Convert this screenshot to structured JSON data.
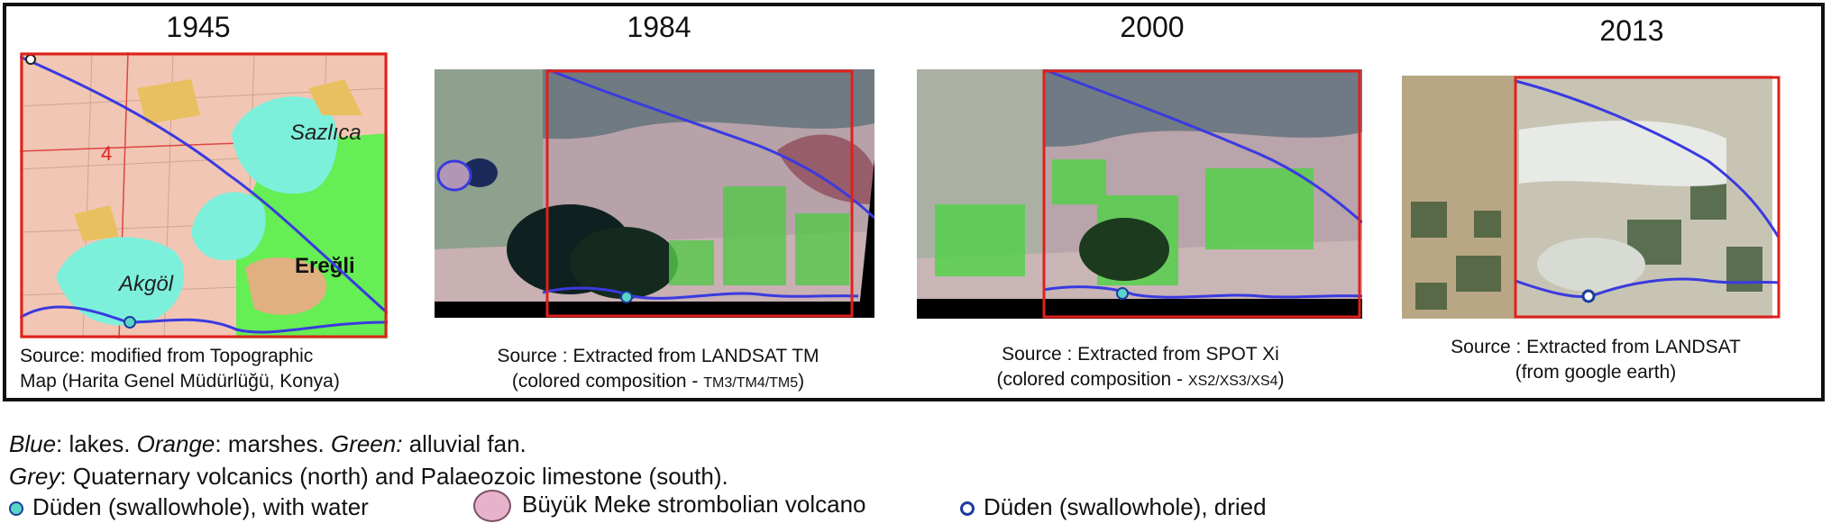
{
  "panels": [
    {
      "year": "1945",
      "caption_line1": "Source: modified from Topographic",
      "caption_line2": "Map (Harita Genel Müdürlüğü, Konya)",
      "map_labels": {
        "sazlica": "Sazlıca",
        "akgol": "Akgöl",
        "eregli": "Ereğli"
      }
    },
    {
      "year": "1984",
      "caption_line1": "Source : Extracted from LANDSAT TM",
      "caption_line2a": "(colored composition - ",
      "caption_line2b": "TM3/TM4/TM5",
      "caption_line2c": ")"
    },
    {
      "year": "2000",
      "caption_line1": "Source : Extracted from SPOT Xi",
      "caption_line2a": "(colored composition - ",
      "caption_line2b": "XS2/XS3/XS4",
      "caption_line2c": ")"
    },
    {
      "year": "2013",
      "caption_line1": "Source : Extracted from LANDSAT",
      "caption_line2": "(from google earth)"
    }
  ],
  "legend": {
    "line1": {
      "blue": "Blue",
      "blue_text": ": lakes. ",
      "orange": "Orange",
      "orange_text": ": marshes. ",
      "green": "Green:",
      "green_text": " alluvial fan."
    },
    "line2": {
      "grey": "Grey",
      "grey_text": ": Quaternary volcanics (north) and Palaeozoic limestone (south)."
    },
    "items": [
      {
        "icon": "filled-cyan-dot-icon",
        "label": "Düden (swallowhole), with water"
      },
      {
        "icon": "pink-blob-icon",
        "label": "Büyük Meke strombolian volcano"
      },
      {
        "icon": "hollow-blue-dot-icon",
        "label": "Düden (swallowhole), dried"
      }
    ]
  },
  "colors": {
    "frame": "#111111",
    "lake_line": "#3a3ae0",
    "red_box": "#e0201c",
    "lake": "#7df0dc",
    "fan": "#66ee55",
    "marsh": "#e8c060",
    "map_bg": "#f2c6b4"
  }
}
